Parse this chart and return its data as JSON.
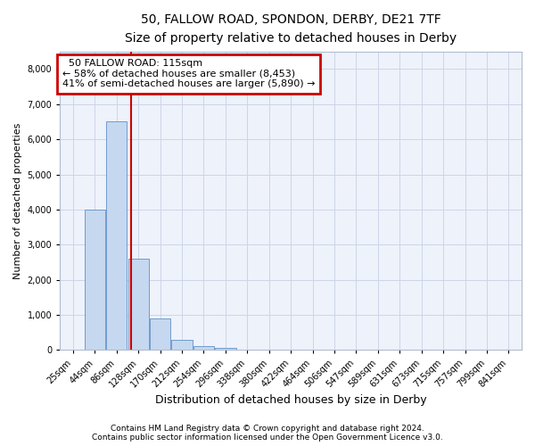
{
  "title1": "50, FALLOW ROAD, SPONDON, DERBY, DE21 7TF",
  "title2": "Size of property relative to detached houses in Derby",
  "xlabel": "Distribution of detached houses by size in Derby",
  "ylabel": "Number of detached properties",
  "footnote1": "Contains HM Land Registry data © Crown copyright and database right 2024.",
  "footnote2": "Contains public sector information licensed under the Open Government Licence v3.0.",
  "annotation_line1": "  50 FALLOW ROAD: 115sqm",
  "annotation_line2": "← 58% of detached houses are smaller (8,453)",
  "annotation_line3": "41% of semi-detached houses are larger (5,890) →",
  "bar_color": "#c5d8f0",
  "bar_edge_color": "#6090c8",
  "vline_color": "#cc0000",
  "annotation_box_edge_color": "#cc0000",
  "grid_color": "#ccd5e8",
  "background_color": "#eef2fa",
  "bin_labels": [
    "25sqm",
    "44sqm",
    "86sqm",
    "128sqm",
    "170sqm",
    "212sqm",
    "254sqm",
    "296sqm",
    "338sqm",
    "380sqm",
    "422sqm",
    "464sqm",
    "506sqm",
    "547sqm",
    "589sqm",
    "631sqm",
    "673sqm",
    "715sqm",
    "757sqm",
    "799sqm",
    "841sqm"
  ],
  "bar_values": [
    5,
    4000,
    6500,
    2600,
    900,
    280,
    120,
    50,
    12,
    5,
    2,
    0,
    0,
    0,
    0,
    0,
    0,
    0,
    0,
    0,
    0
  ],
  "ylim": [
    0,
    8500
  ],
  "yticks": [
    0,
    1000,
    2000,
    3000,
    4000,
    5000,
    6000,
    7000,
    8000
  ],
  "vline_x": 2.68,
  "title1_fontsize": 10,
  "title2_fontsize": 9,
  "xlabel_fontsize": 9,
  "ylabel_fontsize": 8,
  "tick_fontsize": 7,
  "annotation_fontsize": 8,
  "footnote_fontsize": 6.5
}
